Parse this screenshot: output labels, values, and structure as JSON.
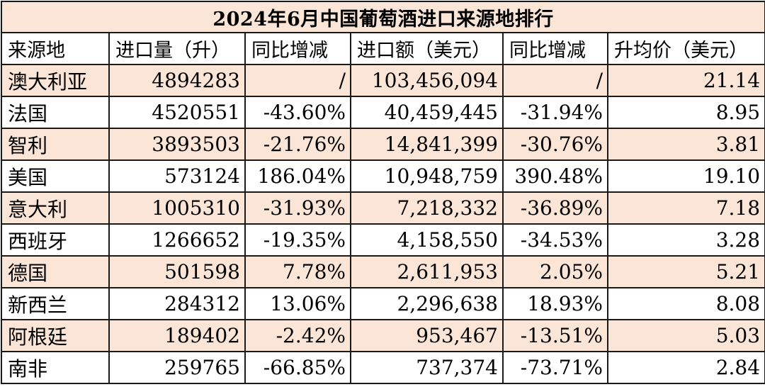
{
  "title": "2024年6月中国葡萄酒进口来源地排行",
  "colors": {
    "title_bg": "#fbe5d6",
    "shaded_row_bg": "#fbe5d6",
    "plain_row_bg": "#ffffff",
    "border": "#1a1a1a"
  },
  "headers": [
    "来源地",
    "进口量（升）",
    "同比增减",
    "进口额（美元）",
    "同比增减",
    "升均价（美元）"
  ],
  "rows": [
    {
      "country": "澳大利亚",
      "volume": "4894283",
      "volume_yoy": "/",
      "value": "103,456,094",
      "value_yoy": "/",
      "price": "21.14",
      "shaded": true
    },
    {
      "country": "法国",
      "volume": "4520551",
      "volume_yoy": "-43.60%",
      "value": "40,459,445",
      "value_yoy": "-31.94%",
      "price": "8.95",
      "shaded": false
    },
    {
      "country": "智利",
      "volume": "3893503",
      "volume_yoy": "-21.76%",
      "value": "14,841,399",
      "value_yoy": "-30.76%",
      "price": "3.81",
      "shaded": true
    },
    {
      "country": "美国",
      "volume": "573124",
      "volume_yoy": "186.04%",
      "value": "10,948,759",
      "value_yoy": "390.48%",
      "price": "19.10",
      "shaded": false
    },
    {
      "country": "意大利",
      "volume": "1005310",
      "volume_yoy": "-31.93%",
      "value": "7,218,332",
      "value_yoy": "-36.89%",
      "price": "7.18",
      "shaded": true
    },
    {
      "country": "西班牙",
      "volume": "1266652",
      "volume_yoy": "-19.35%",
      "value": "4,158,550",
      "value_yoy": "-34.53%",
      "price": "3.28",
      "shaded": false
    },
    {
      "country": "德国",
      "volume": "501598",
      "volume_yoy": "7.78%",
      "value": "2,611,953",
      "value_yoy": "2.05%",
      "price": "5.21",
      "shaded": true
    },
    {
      "country": "新西兰",
      "volume": "284312",
      "volume_yoy": "13.06%",
      "value": "2,296,638",
      "value_yoy": "18.93%",
      "price": "8.08",
      "shaded": false
    },
    {
      "country": "阿根廷",
      "volume": "189402",
      "volume_yoy": "-2.42%",
      "value": "953,467",
      "value_yoy": "-13.51%",
      "price": "5.03",
      "shaded": true
    },
    {
      "country": "南非",
      "volume": "259765",
      "volume_yoy": "-66.85%",
      "value": "737,374",
      "value_yoy": "-73.71%",
      "price": "2.84",
      "shaded": false
    }
  ]
}
